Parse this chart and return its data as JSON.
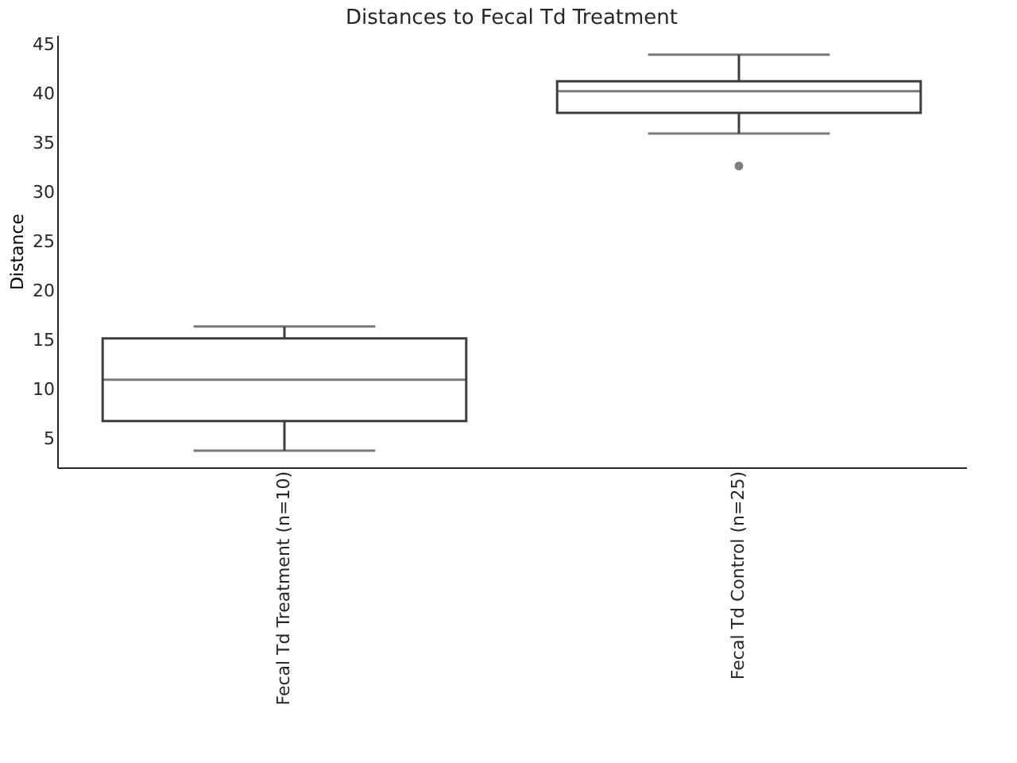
{
  "chart_data": {
    "type": "box",
    "title": "Distances to Fecal Td Treatment",
    "ylabel": "Distance",
    "categories": [
      "Fecal Td Treatment (n=10)",
      "Fecal Td Control (n=25)"
    ],
    "boxes": [
      {
        "low": 3.8,
        "q1": 6.8,
        "median": 11.0,
        "q3": 15.2,
        "high": 16.4
      },
      {
        "low": 36.0,
        "q1": 38.1,
        "median": 40.3,
        "q3": 41.3,
        "high": 44.0,
        "outliers": [
          32.7
        ]
      }
    ],
    "ylim": [
      2.1,
      46.0
    ],
    "yticks": [
      5,
      10,
      15,
      20,
      25,
      30,
      35,
      40,
      45
    ],
    "grid": false
  }
}
